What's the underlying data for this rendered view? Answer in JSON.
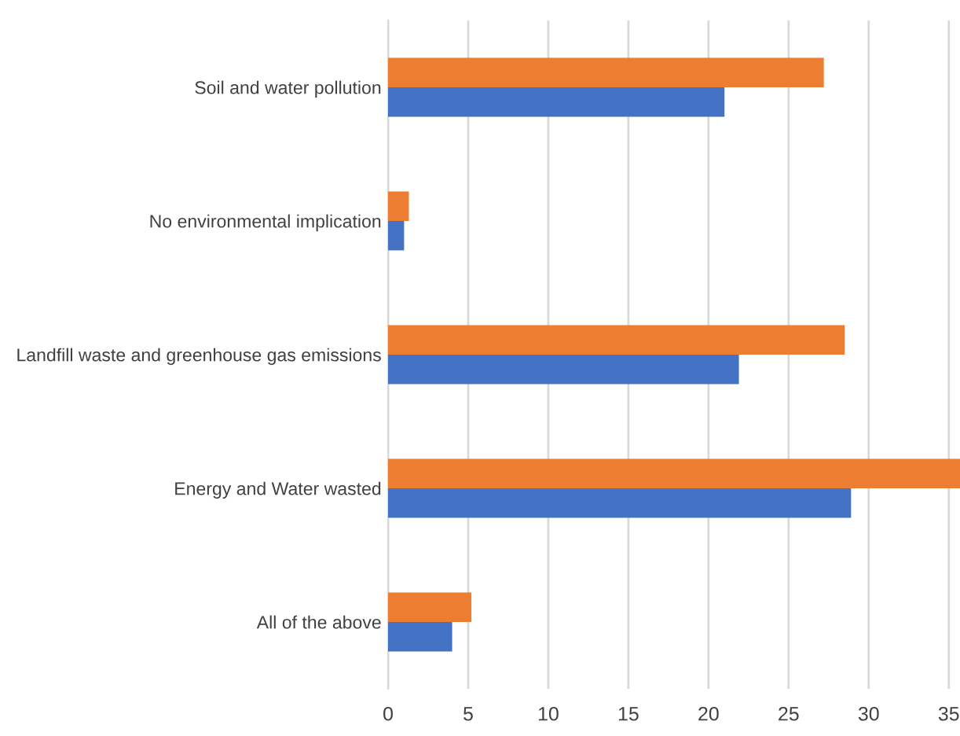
{
  "chart_data": {
    "type": "bar",
    "orientation": "horizontal",
    "categories": [
      "Soil and water pollution",
      "No environmental implication",
      "Landfill waste and greenhouse gas emissions",
      "Energy and Water wasted",
      "All of the above"
    ],
    "series": [
      {
        "color": "#4472c4",
        "values": [
          21.0,
          1.0,
          21.9,
          28.9,
          4.0
        ]
      },
      {
        "color": "#ed7d31",
        "values": [
          27.2,
          1.3,
          28.5,
          35.7,
          5.2
        ]
      }
    ],
    "xlim": [
      0,
      35.7
    ],
    "xticks": [
      0,
      5,
      10,
      15,
      20,
      25,
      30,
      35
    ],
    "grid": "x",
    "legend": false
  }
}
